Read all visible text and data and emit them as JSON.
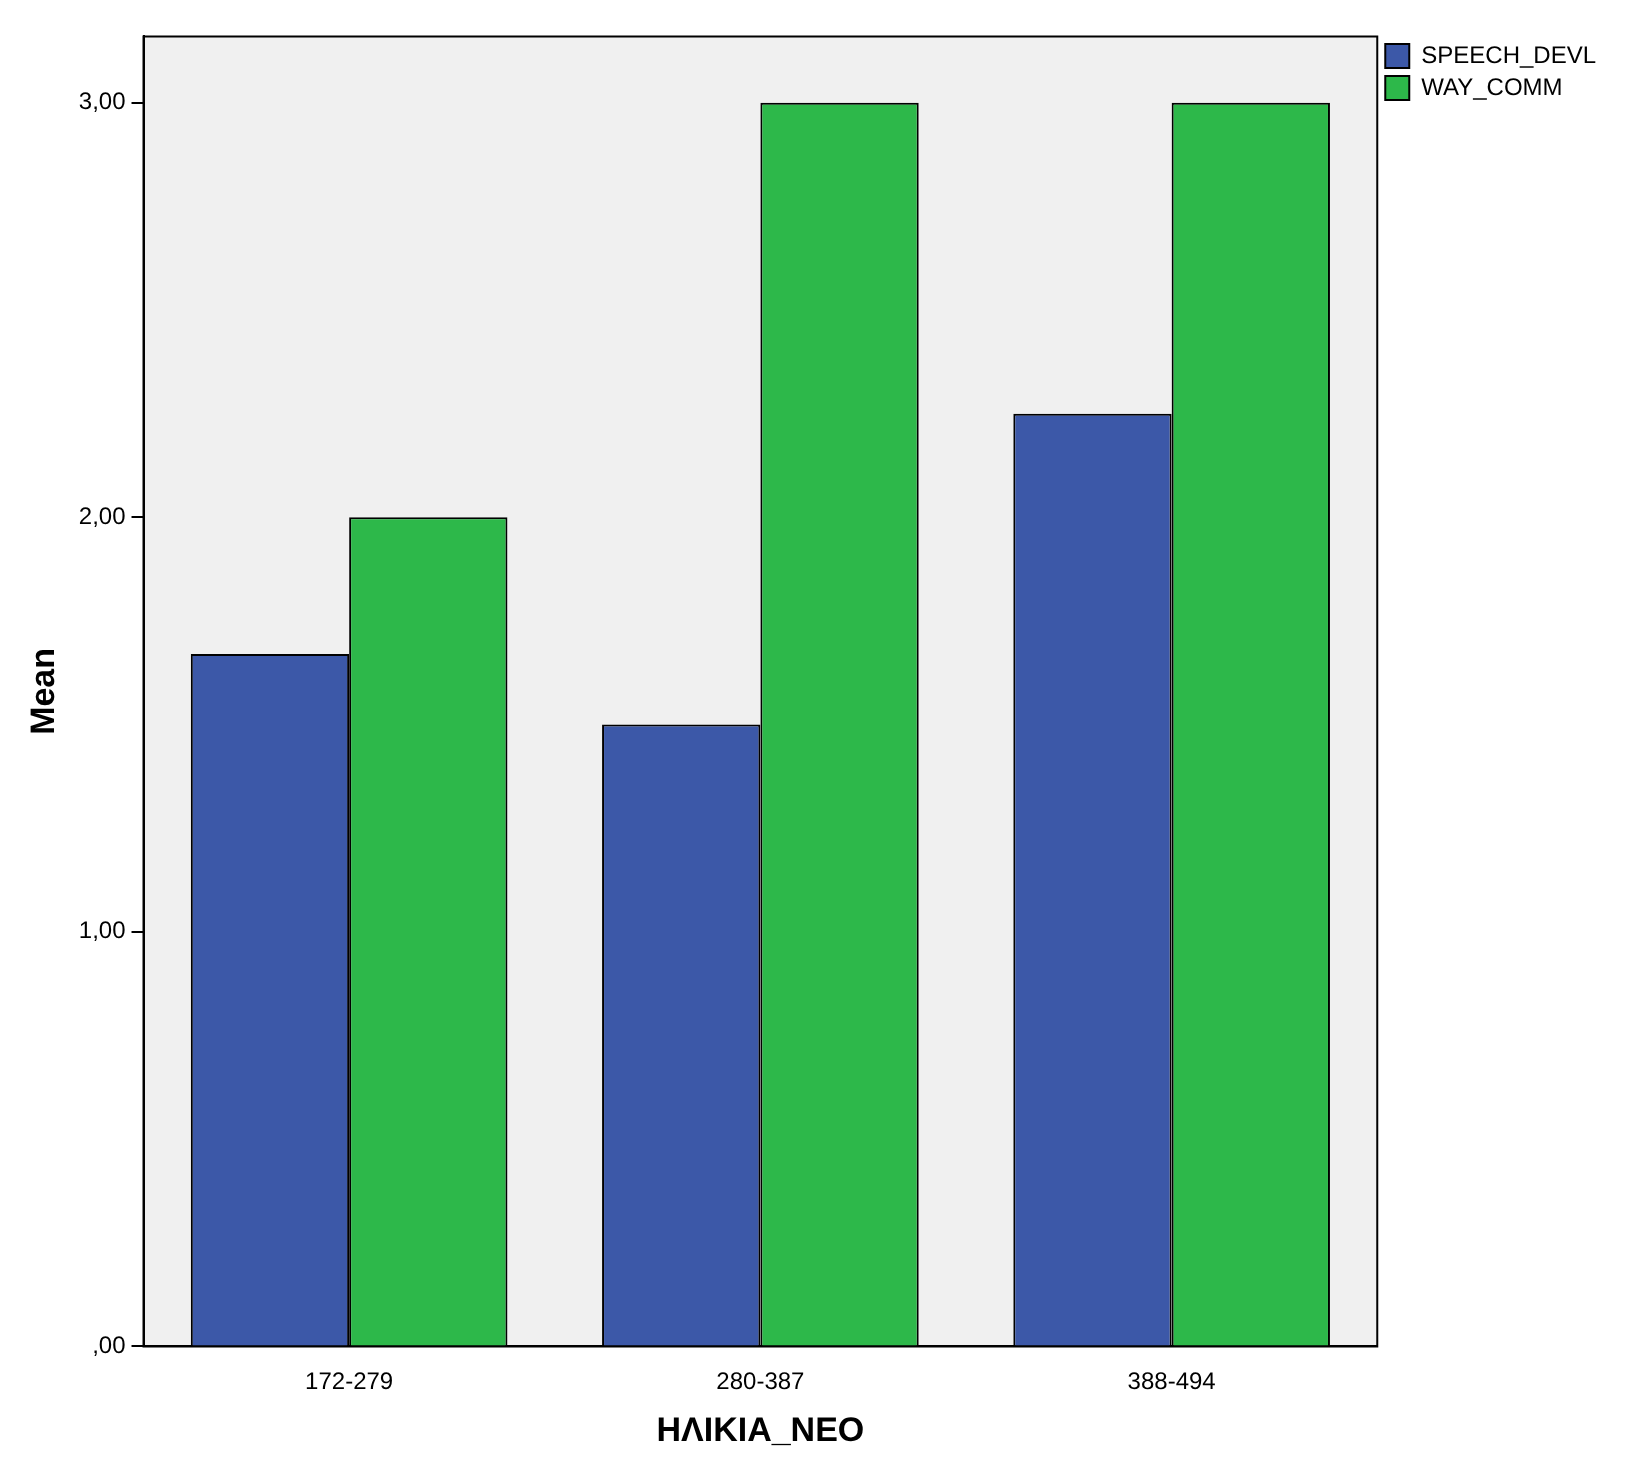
{
  "chart_data": {
    "type": "bar",
    "xlabel": "ΗΛΙΚΙΑ_ΝΕΟ",
    "ylabel": "Mean",
    "categories": [
      "172-279",
      "280-387",
      "388-494"
    ],
    "series": [
      {
        "name": "SPEECH_DEVL",
        "color": "#3c58a8",
        "values": [
          1.67,
          1.5,
          2.25
        ]
      },
      {
        "name": "WAY_COMM",
        "color": "#2db84a",
        "values": [
          2,
          3,
          3
        ]
      }
    ],
    "ylim": [
      0,
      3.16
    ],
    "yticks": [
      {
        "value": 0,
        "label": ",00"
      },
      {
        "value": 1,
        "label": "1,00"
      },
      {
        "value": 2,
        "label": "2,00"
      },
      {
        "value": 3,
        "label": "3,00"
      }
    ],
    "legend": "top right"
  }
}
